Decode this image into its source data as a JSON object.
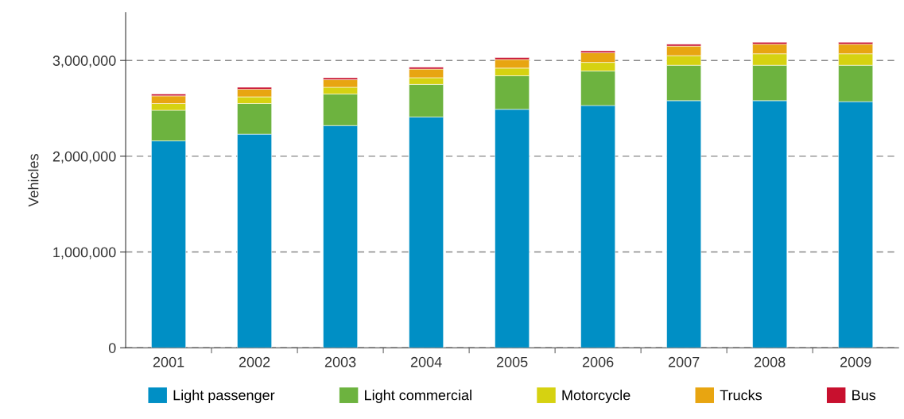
{
  "chart_data": {
    "type": "bar",
    "stacked": true,
    "ylabel": "Vehicles",
    "categories": [
      "2001",
      "2002",
      "2003",
      "2004",
      "2005",
      "2006",
      "2007",
      "2008",
      "2009"
    ],
    "series": [
      {
        "name": "Light passenger",
        "color": "#008fc5",
        "values": [
          2160000,
          2230000,
          2320000,
          2410000,
          2490000,
          2530000,
          2580000,
          2580000,
          2570000
        ]
      },
      {
        "name": "Light commercial",
        "color": "#6db33f",
        "values": [
          320000,
          320000,
          330000,
          340000,
          350000,
          360000,
          370000,
          370000,
          380000
        ]
      },
      {
        "name": "Motorcycle",
        "color": "#d6d211",
        "values": [
          70000,
          70000,
          70000,
          70000,
          80000,
          90000,
          100000,
          120000,
          120000
        ]
      },
      {
        "name": "Trucks",
        "color": "#e8a511",
        "values": [
          80000,
          80000,
          80000,
          90000,
          90000,
          100000,
          100000,
          100000,
          100000
        ]
      },
      {
        "name": "Bus",
        "color": "#c8102e",
        "values": [
          20000,
          20000,
          20000,
          20000,
          20000,
          20000,
          20000,
          20000,
          20000
        ]
      }
    ],
    "ylim": [
      0,
      3500000
    ],
    "yticks": [
      0,
      {
        "value": 1000000,
        "label": "1,000,000"
      },
      {
        "value": 2000000,
        "label": "2,000,000"
      },
      {
        "value": 3000000,
        "label": "3,000,000"
      }
    ],
    "grid": "y",
    "legend": "bottom"
  }
}
